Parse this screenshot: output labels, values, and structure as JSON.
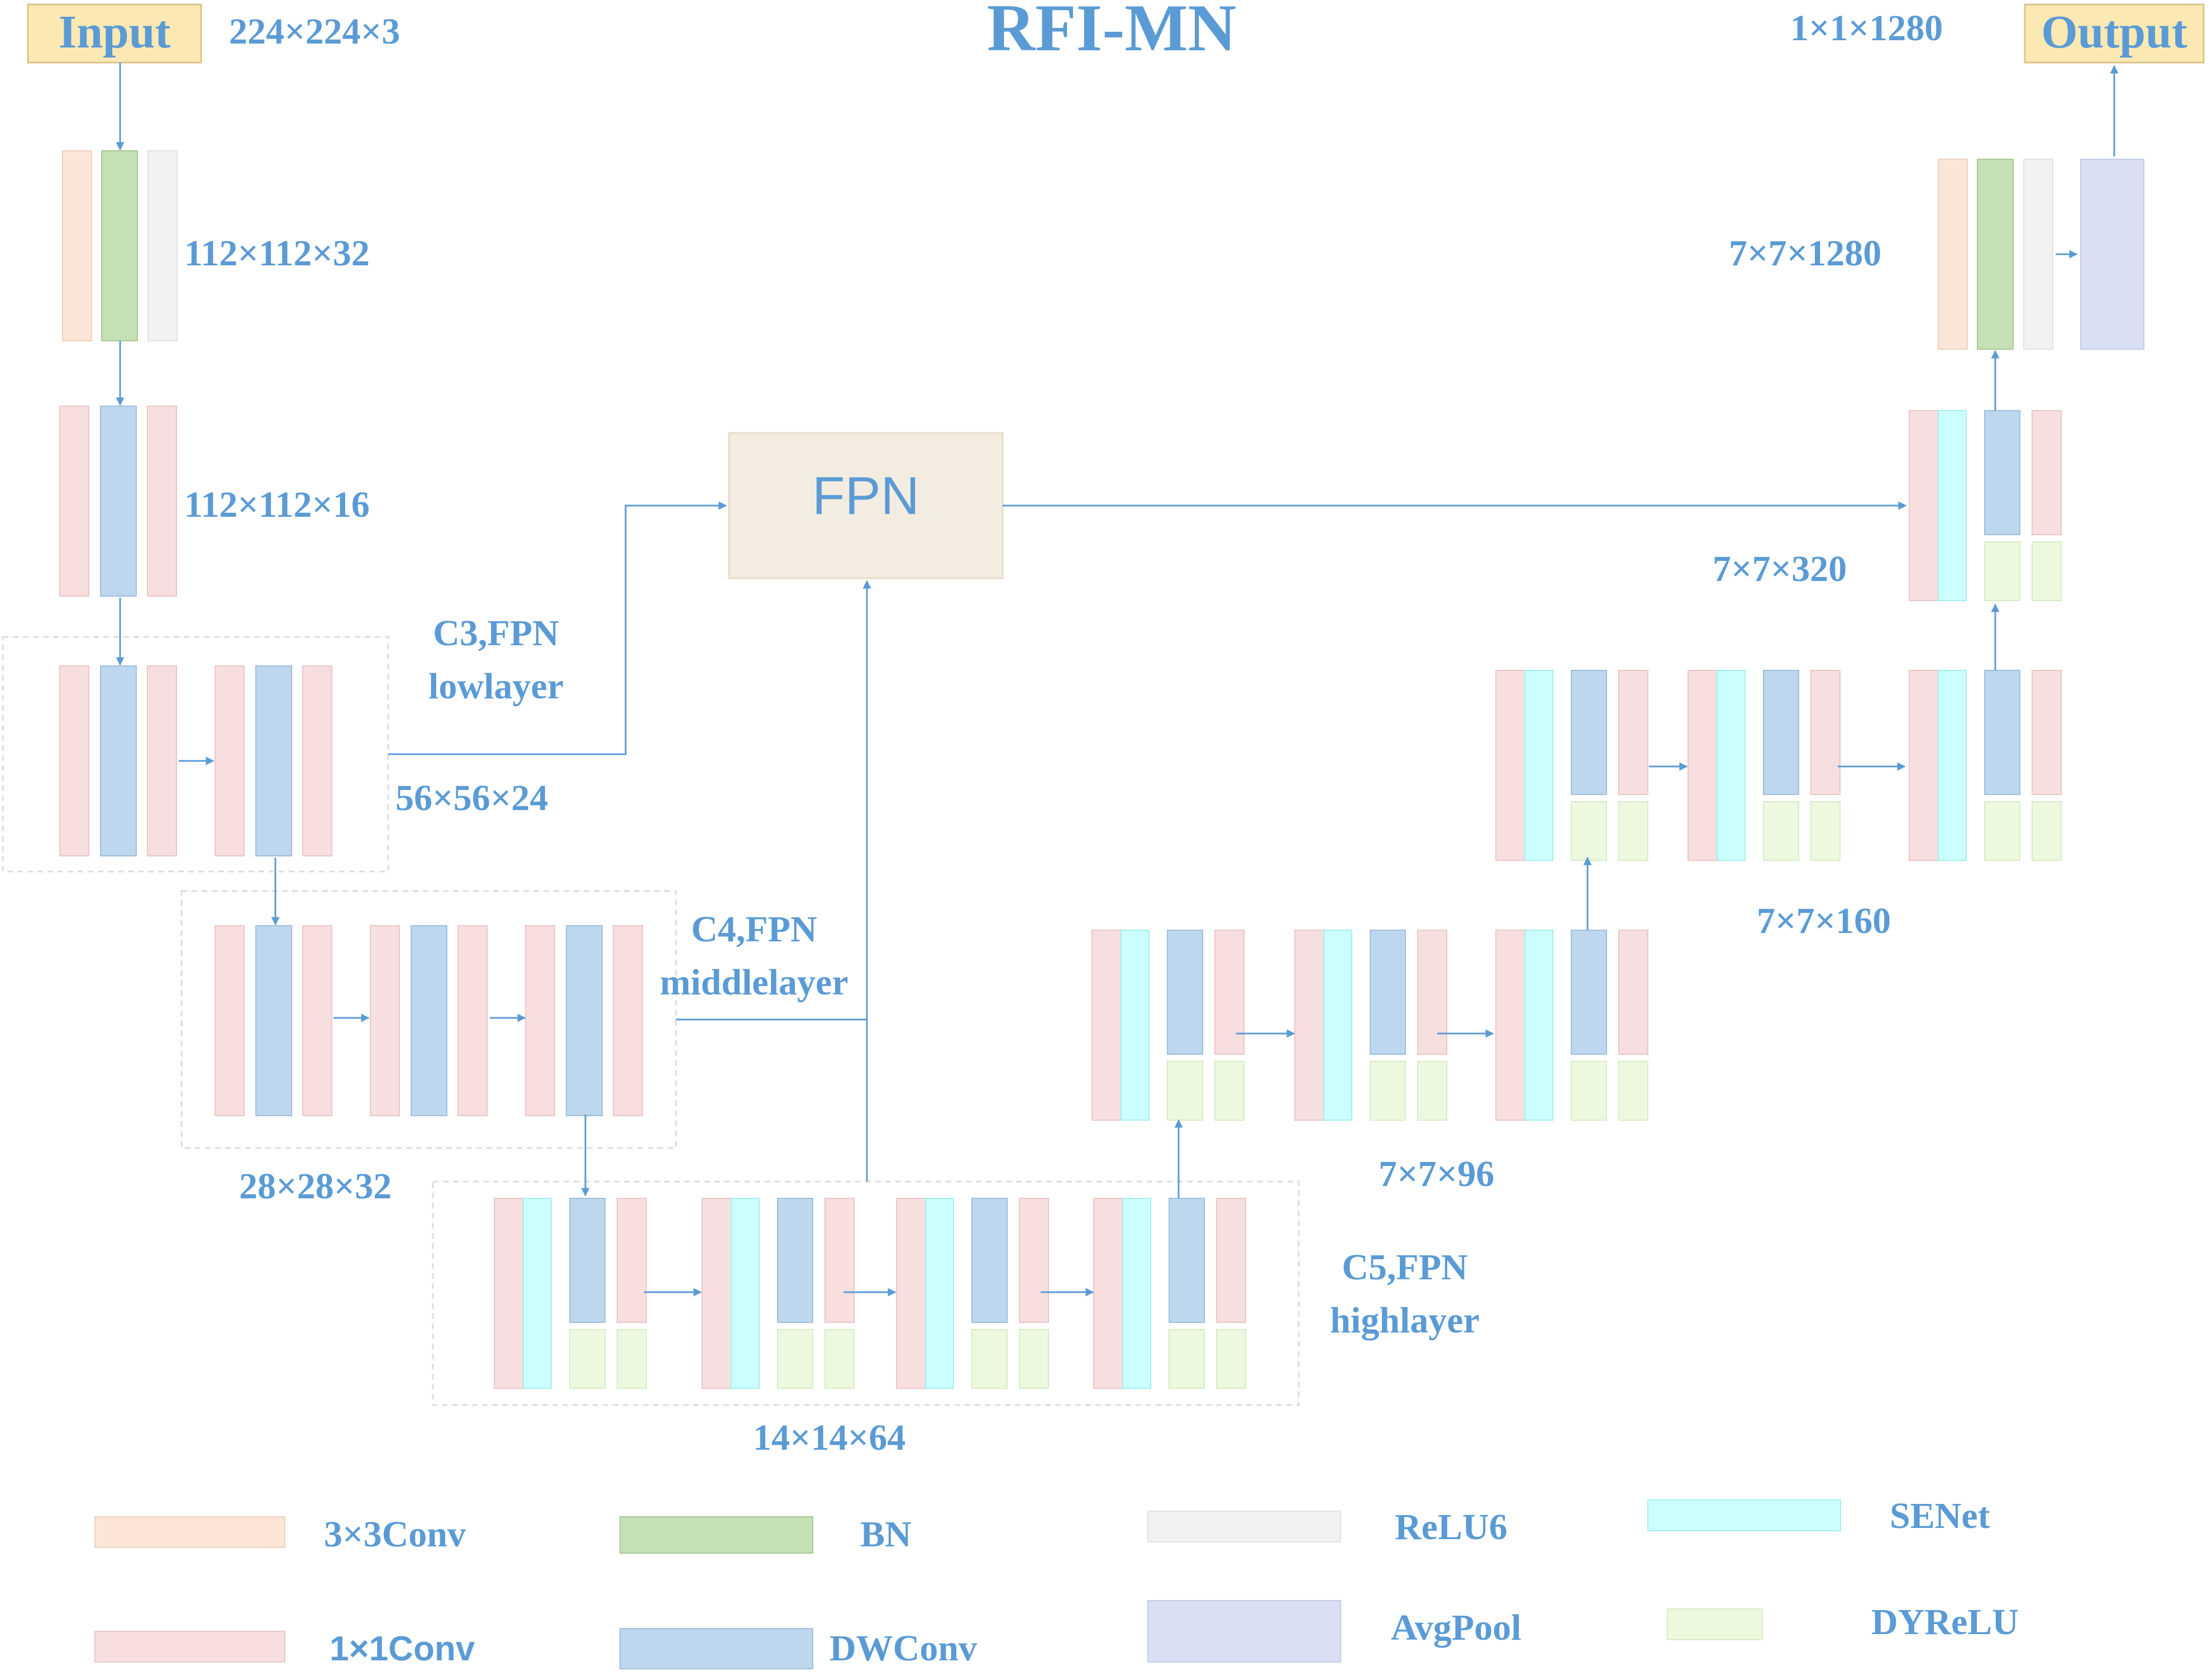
{
  "title": "RFI-MN",
  "input_label": "Input",
  "output_label": "Output",
  "fpn_label": "FPN",
  "dims": {
    "input": "224×224×3",
    "output": "1×1×1280",
    "conv_stem": "112×112×32",
    "block1": "112×112×16",
    "block2": "56×56×24",
    "block3": "28×28×32",
    "block4": "14×14×64",
    "block5": "7×7×96",
    "block6": "7×7×160",
    "block7": "7×7×320",
    "head": "7×7×1280"
  },
  "fpn_taps": {
    "c3_line1": "C3,FPN",
    "c3_line2": "lowlayer",
    "c4_line1": "C4,FPN",
    "c4_line2": "middlelayer",
    "c5_line1": "C5,FPN",
    "c5_line2": "highlayer"
  },
  "legend": [
    {
      "key": "conv3",
      "label": "3×3Conv",
      "color": "#fbe5d6"
    },
    {
      "key": "bn",
      "label": "BN",
      "color": "#c5e0b4"
    },
    {
      "key": "relu6",
      "label": "ReLU6",
      "color": "#f2f2f2"
    },
    {
      "key": "senet",
      "label": "SENet",
      "color": "#ccffff"
    },
    {
      "key": "conv1",
      "label": "1×1Conv",
      "color": "#f8dfdf"
    },
    {
      "key": "dwconv",
      "label": "DWConv",
      "color": "#bdd7ee"
    },
    {
      "key": "avgpool",
      "label": "AvgPool",
      "color": "#dae0f3"
    },
    {
      "key": "dyrelu",
      "label": "DYReLU",
      "color": "#ecf9df"
    }
  ],
  "colors": {
    "accent": "#5b9bd5",
    "io_fill": "#fce8b2",
    "fpn_fill": "#f3ece0"
  }
}
